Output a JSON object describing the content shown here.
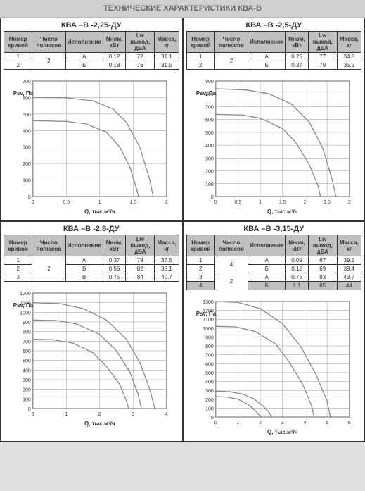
{
  "page_title": "ТЕХНИЧЕСКИЕ ХАРАКТЕРИСТИКИ КВА-В",
  "table_headers": {
    "curve_no": "Номер кривой",
    "poles": "Число полюсов",
    "execution": "Исполнение",
    "power": "Nном, кВт",
    "lw": "Lw выход, дБА",
    "mass": "Масса, кг"
  },
  "axis": {
    "y_label": "Psv, Па",
    "x_label": "Q, тыс.м³/ч"
  },
  "models": [
    {
      "title": "КВА –В -2,25-ДУ",
      "rows": [
        {
          "n": "1",
          "poles": "2",
          "ex": "А",
          "pw": "0.12",
          "lw": "72",
          "m": "31.1",
          "poles_rowspan": 2
        },
        {
          "n": "2",
          "ex": "Б",
          "pw": "0.18",
          "lw": "76",
          "m": "31.5"
        }
      ],
      "chart": {
        "xlim": [
          0,
          2.0
        ],
        "xtick": 0.5,
        "ylim": [
          0,
          700
        ],
        "ytick": 100,
        "curves": [
          [
            [
              0,
              600
            ],
            [
              0.5,
              598
            ],
            [
              0.9,
              580
            ],
            [
              1.2,
              530
            ],
            [
              1.4,
              450
            ],
            [
              1.6,
              300
            ],
            [
              1.75,
              100
            ],
            [
              1.8,
              0
            ]
          ],
          [
            [
              0,
              460
            ],
            [
              0.5,
              455
            ],
            [
              0.8,
              440
            ],
            [
              1.1,
              390
            ],
            [
              1.3,
              300
            ],
            [
              1.45,
              180
            ],
            [
              1.55,
              50
            ],
            [
              1.58,
              0
            ]
          ]
        ],
        "grid_color": "#999",
        "curve_color": "#888",
        "bg": "#fff"
      }
    },
    {
      "title": "КВА –В -2,5-ДУ",
      "rows": [
        {
          "n": "1",
          "poles": "2",
          "ex": "А",
          "pw": "0.25",
          "lw": "77",
          "m": "34.8",
          "poles_rowspan": 2
        },
        {
          "n": "2",
          "ex": "Б",
          "pw": "0.37",
          "lw": "79",
          "m": "35.5"
        }
      ],
      "chart": {
        "xlim": [
          0,
          3.0
        ],
        "xtick": 0.5,
        "ylim": [
          0,
          900
        ],
        "ytick": 100,
        "curves": [
          [
            [
              0,
              840
            ],
            [
              0.7,
              830
            ],
            [
              1.2,
              800
            ],
            [
              1.7,
              720
            ],
            [
              2.1,
              580
            ],
            [
              2.4,
              380
            ],
            [
              2.6,
              150
            ],
            [
              2.7,
              0
            ]
          ],
          [
            [
              0,
              640
            ],
            [
              0.6,
              635
            ],
            [
              1.0,
              610
            ],
            [
              1.5,
              530
            ],
            [
              1.8,
              420
            ],
            [
              2.1,
              250
            ],
            [
              2.3,
              80
            ],
            [
              2.35,
              0
            ]
          ]
        ],
        "grid_color": "#999",
        "curve_color": "#888",
        "bg": "#fff"
      }
    },
    {
      "title": "КВА –В -2,8-ДУ",
      "rows": [
        {
          "n": "1",
          "poles": "2",
          "ex": "А",
          "pw": "0.37",
          "lw": "79",
          "m": "37.5",
          "poles_rowspan": 3
        },
        {
          "n": "2",
          "ex": "Б",
          "pw": "0.55",
          "lw": "82",
          "m": "38.1"
        },
        {
          "n": "3",
          "ex": "В",
          "pw": "0.75",
          "lw": "84",
          "m": "40.7"
        }
      ],
      "chart": {
        "xlim": [
          0,
          4.0
        ],
        "xtick": 1.0,
        "ylim": [
          0,
          1200
        ],
        "ytick": 100,
        "curves": [
          [
            [
              0,
              1100
            ],
            [
              0.8,
              1090
            ],
            [
              1.5,
              1040
            ],
            [
              2.2,
              920
            ],
            [
              2.8,
              720
            ],
            [
              3.2,
              480
            ],
            [
              3.5,
              200
            ],
            [
              3.65,
              0
            ]
          ],
          [
            [
              0,
              920
            ],
            [
              0.7,
              915
            ],
            [
              1.3,
              880
            ],
            [
              2.0,
              770
            ],
            [
              2.5,
              600
            ],
            [
              2.9,
              380
            ],
            [
              3.15,
              150
            ],
            [
              3.25,
              0
            ]
          ],
          [
            [
              0,
              720
            ],
            [
              0.6,
              715
            ],
            [
              1.2,
              680
            ],
            [
              1.8,
              580
            ],
            [
              2.2,
              440
            ],
            [
              2.6,
              250
            ],
            [
              2.8,
              80
            ],
            [
              2.87,
              0
            ]
          ]
        ],
        "grid_color": "#999",
        "curve_color": "#888",
        "bg": "#fff"
      }
    },
    {
      "title": "КВА –В -3,15-ДУ",
      "rows": [
        {
          "n": "1",
          "poles": "4",
          "ex": "А",
          "pw": "0.09",
          "lw": "67",
          "m": "39.1",
          "poles_rowspan": 2
        },
        {
          "n": "2",
          "ex": "Б",
          "pw": "0.12",
          "lw": "69",
          "m": "39.4"
        },
        {
          "n": "3",
          "poles": "2",
          "ex": "А",
          "pw": "0.75",
          "lw": "83",
          "m": "43.7",
          "poles_rowspan": 2,
          "shaded": false
        },
        {
          "n": "4",
          "ex": "Б",
          "pw": "1.1",
          "lw": "85",
          "m": "44",
          "shaded": true
        }
      ],
      "chart": {
        "xlim": [
          0,
          6.0
        ],
        "xtick": 1.0,
        "ylim": [
          0,
          1300
        ],
        "ytick": 100,
        "curves": [
          [
            [
              0,
              1300
            ],
            [
              1.0,
              1290
            ],
            [
              2.0,
              1220
            ],
            [
              3.0,
              1050
            ],
            [
              3.8,
              800
            ],
            [
              4.5,
              480
            ],
            [
              5.0,
              180
            ],
            [
              5.15,
              0
            ]
          ],
          [
            [
              0,
              1020
            ],
            [
              0.9,
              1015
            ],
            [
              1.8,
              960
            ],
            [
              2.7,
              820
            ],
            [
              3.3,
              620
            ],
            [
              3.9,
              370
            ],
            [
              4.3,
              130
            ],
            [
              4.42,
              0
            ]
          ],
          [
            [
              0,
              290
            ],
            [
              0.6,
              285
            ],
            [
              1.2,
              260
            ],
            [
              1.7,
              205
            ],
            [
              2.1,
              130
            ],
            [
              2.4,
              50
            ],
            [
              2.52,
              0
            ]
          ],
          [
            [
              0,
              230
            ],
            [
              0.5,
              225
            ],
            [
              1.0,
              200
            ],
            [
              1.4,
              150
            ],
            [
              1.7,
              90
            ],
            [
              1.95,
              25
            ],
            [
              2.05,
              0
            ]
          ]
        ],
        "grid_color": "#999",
        "curve_color": "#888",
        "bg": "#fff"
      }
    }
  ]
}
